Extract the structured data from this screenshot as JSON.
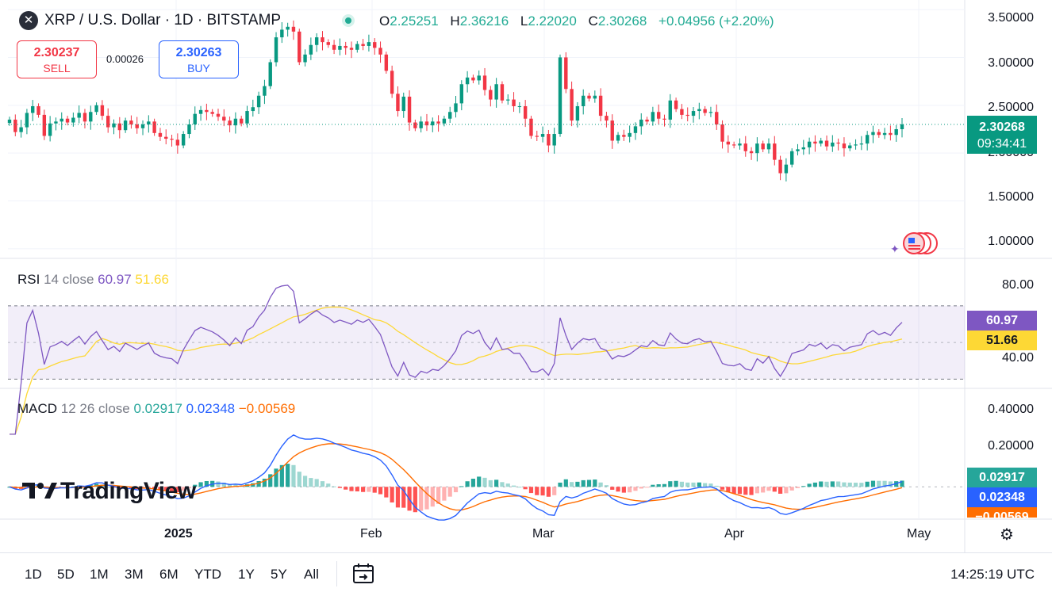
{
  "header": {
    "symbol_icon": "xrp-logo-icon",
    "title": "XRP / U.S. Dollar · 1D · BITSTAMP",
    "ohlc": {
      "o_label": "O",
      "o": "2.25251",
      "h_label": "H",
      "h": "2.36216",
      "l_label": "L",
      "l": "2.22020",
      "c_label": "C",
      "c": "2.30268",
      "change": "+0.04956 (+2.20%)"
    }
  },
  "trade": {
    "sell_price": "2.30237",
    "sell_label": "SELL",
    "spread": "0.00026",
    "buy_price": "2.30263",
    "buy_label": "BUY"
  },
  "price_axis": {
    "ticks": [
      "3.50000",
      "3.00000",
      "2.50000",
      "2.00000",
      "1.50000",
      "1.00000"
    ]
  },
  "price_tag": {
    "price": "2.30268",
    "countdown": "09:34:41"
  },
  "rsi": {
    "name": "RSI",
    "params": "14 close",
    "value": "60.97",
    "ma_value": "51.66",
    "axis_ticks": [
      "80.00",
      "40.00"
    ]
  },
  "macd": {
    "name": "MACD",
    "params": "12 26 close",
    "hist_value": "0.02917",
    "macd_value": "0.02348",
    "signal_value": "−0.00569",
    "axis_ticks": [
      "0.40000",
      "0.20000"
    ]
  },
  "time_axis": {
    "labels": [
      "2025",
      "Feb",
      "Mar",
      "Apr",
      "May"
    ]
  },
  "branding": {
    "logo_text": "TradingView"
  },
  "bottom_bar": {
    "ranges": [
      "1D",
      "5D",
      "1M",
      "3M",
      "6M",
      "YTD",
      "1Y",
      "5Y",
      "All"
    ],
    "clock": "14:25:19 UTC"
  },
  "colors": {
    "up": "#089981",
    "down": "#f23645",
    "rsi": "#7e57c2",
    "rsi_ma": "#fdd835",
    "macd": "#2962ff",
    "signal": "#ff6d00",
    "hist_up": "#26a69a",
    "hist_down": "#ff5252"
  },
  "chart_data": {
    "type": "candlestick",
    "title": "XRP / U.S. Dollar · 1D · BITSTAMP",
    "x_labels": [
      "2025",
      "Feb",
      "Mar",
      "Apr",
      "May"
    ],
    "price_range": [
      0.9,
      3.6
    ],
    "closes": [
      2.35,
      2.22,
      2.27,
      2.42,
      2.49,
      2.4,
      2.18,
      2.31,
      2.33,
      2.36,
      2.32,
      2.37,
      2.42,
      2.33,
      2.43,
      2.5,
      2.39,
      2.27,
      2.31,
      2.24,
      2.34,
      2.3,
      2.26,
      2.3,
      2.33,
      2.21,
      2.17,
      2.15,
      2.14,
      2.08,
      2.2,
      2.3,
      2.41,
      2.45,
      2.43,
      2.41,
      2.38,
      2.34,
      2.29,
      2.36,
      2.31,
      2.44,
      2.48,
      2.6,
      2.7,
      2.95,
      3.21,
      3.29,
      3.32,
      3.27,
      2.95,
      3.03,
      3.13,
      3.21,
      3.16,
      3.13,
      3.08,
      3.12,
      3.1,
      3.08,
      3.14,
      3.12,
      3.16,
      3.1,
      3.03,
      2.86,
      2.62,
      2.44,
      2.59,
      2.32,
      2.26,
      2.33,
      2.29,
      2.33,
      2.31,
      2.36,
      2.43,
      2.52,
      2.72,
      2.79,
      2.76,
      2.81,
      2.66,
      2.56,
      2.72,
      2.55,
      2.56,
      2.49,
      2.49,
      2.36,
      2.18,
      2.17,
      2.2,
      2.08,
      2.2,
      3.0,
      2.67,
      2.34,
      2.49,
      2.6,
      2.57,
      2.6,
      2.39,
      2.34,
      2.13,
      2.19,
      2.17,
      2.21,
      2.28,
      2.35,
      2.33,
      2.43,
      2.36,
      2.35,
      2.55,
      2.46,
      2.4,
      2.39,
      2.44,
      2.46,
      2.42,
      2.43,
      2.3,
      2.12,
      2.09,
      2.08,
      2.1,
      2.02,
      2.0,
      2.1,
      2.04,
      2.1,
      1.93,
      1.79,
      1.88,
      2.02,
      2.04,
      2.06,
      2.12,
      2.1,
      2.13,
      2.07,
      2.11,
      2.1,
      2.05,
      2.08,
      2.09,
      2.1,
      2.19,
      2.22,
      2.19,
      2.21,
      2.19,
      2.25,
      2.3
    ],
    "rsi": {
      "range": [
        25,
        95
      ],
      "upper_band": 70,
      "middle": 50,
      "lower_band": 30,
      "last": 60.97,
      "ma_last": 51.66
    },
    "macd": {
      "range": [
        -0.15,
        0.45
      ],
      "last_hist": 0.02917,
      "last_macd": 0.02348,
      "last_signal": -0.00569
    }
  }
}
